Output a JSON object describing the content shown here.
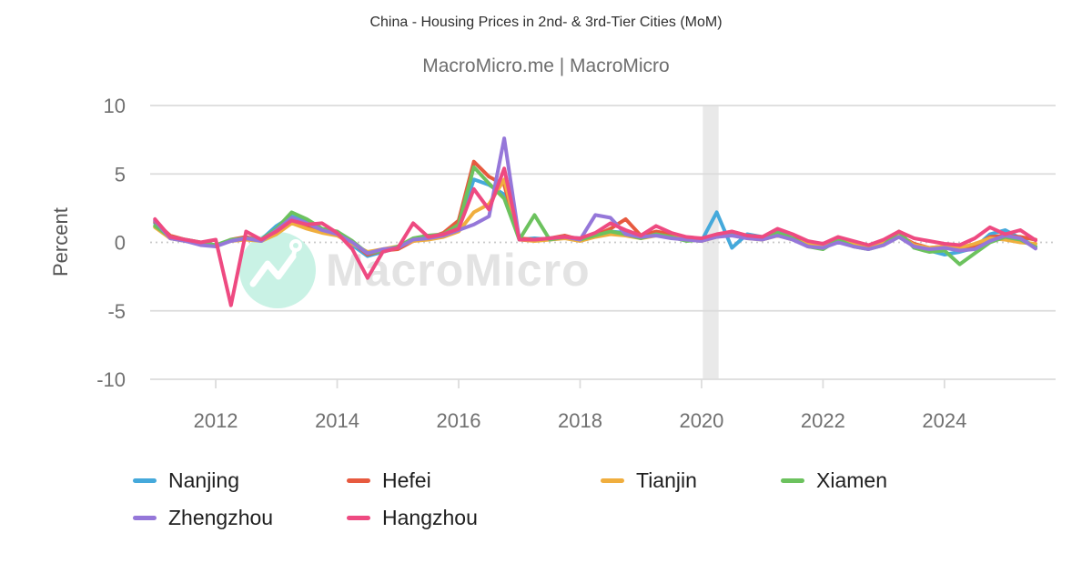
{
  "header": {
    "title": "China - Housing Prices in 2nd- & 3rd-Tier Cities (MoM)",
    "subtitle": "MacroMicro.me | MacroMicro"
  },
  "watermark": {
    "brand": "MacroMicro",
    "logo": "mountain-peaks-with-flag-icon",
    "circle_color": "#C9F2E5",
    "text_color": "#E3E3E3"
  },
  "y_axis": {
    "label": "Percent",
    "ticks": [
      10,
      5,
      0,
      -5,
      -10
    ]
  },
  "x_axis": {
    "ticks": [
      2012,
      2014,
      2016,
      2018,
      2020,
      2022,
      2024
    ]
  },
  "annotations": {
    "covid_band": {
      "x_start": 2020.02,
      "x_end": 2020.28,
      "color": "#E9E9E9"
    }
  },
  "colors": {
    "background": "#FFFFFF",
    "grid_line": "#DCDCDC",
    "zero_line": "#C9C9C9",
    "title_text": "#2F2F2F",
    "subtitle_text": "#6E6E6E",
    "tick_text": "#707070",
    "axis_title_text": "#555555",
    "legend_text": "#1F1F1F"
  },
  "chart_data": {
    "type": "line",
    "title": "China - Housing Prices in 2nd- & 3rd-Tier Cities (MoM)",
    "xlabel": "",
    "ylabel": "Percent",
    "ylim": [
      -10,
      10
    ],
    "x_range": [
      2010.92,
      2025.83
    ],
    "x_start": 2011.0,
    "x_step": 0.25,
    "grid": true,
    "legend_position": "bottom-left",
    "series": [
      {
        "name": "Nanjing",
        "color": "#45A9DB",
        "values": [
          1.4,
          0.3,
          0.1,
          -0.1,
          -0.2,
          0.1,
          0.3,
          0.2,
          1.2,
          1.9,
          1.5,
          0.9,
          0.6,
          -0.2,
          -1.0,
          -0.7,
          -0.4,
          0.2,
          0.4,
          0.6,
          1.2,
          4.6,
          4.2,
          3.5,
          0.2,
          0.3,
          0.2,
          0.4,
          0.3,
          0.6,
          0.8,
          0.7,
          0.4,
          0.7,
          0.5,
          0.2,
          0.1,
          2.2,
          -0.4,
          0.6,
          0.4,
          0.8,
          0.3,
          -0.2,
          -0.4,
          0.2,
          -0.2,
          -0.4,
          0.0,
          0.7,
          -0.3,
          -0.6,
          -0.9,
          -0.7,
          -0.4,
          0.6,
          0.9,
          0.3,
          -0.3
        ]
      },
      {
        "name": "Hefei",
        "color": "#E75A3F",
        "values": [
          1.5,
          0.5,
          0.2,
          0.0,
          -0.3,
          0.2,
          0.4,
          0.1,
          0.8,
          1.6,
          1.2,
          0.8,
          0.7,
          0.0,
          -0.9,
          -0.6,
          -0.5,
          0.1,
          0.3,
          0.7,
          1.6,
          5.9,
          4.8,
          4.2,
          0.3,
          0.2,
          0.3,
          0.5,
          0.2,
          0.5,
          1.0,
          1.7,
          0.5,
          0.8,
          0.6,
          0.3,
          0.2,
          0.5,
          0.8,
          0.5,
          0.4,
          0.6,
          0.3,
          0.0,
          -0.2,
          0.3,
          0.0,
          -0.3,
          0.1,
          0.5,
          -0.1,
          -0.4,
          -0.3,
          -0.6,
          -0.3,
          0.4,
          0.5,
          0.4,
          0.2
        ]
      },
      {
        "name": "Tianjin",
        "color": "#F0AE3E",
        "values": [
          1.1,
          0.3,
          0.1,
          -0.1,
          -0.2,
          0.1,
          0.2,
          0.1,
          0.6,
          1.4,
          1.0,
          0.7,
          0.5,
          -0.1,
          -0.7,
          -0.5,
          -0.3,
          0.1,
          0.2,
          0.4,
          0.8,
          2.2,
          2.8,
          4.6,
          0.2,
          0.1,
          0.2,
          0.3,
          0.1,
          0.4,
          0.6,
          0.5,
          0.3,
          0.5,
          0.4,
          0.2,
          0.1,
          0.4,
          0.6,
          0.3,
          0.2,
          0.5,
          0.2,
          -0.1,
          -0.3,
          0.2,
          -0.1,
          -0.4,
          0.0,
          0.5,
          -0.2,
          -0.4,
          -0.3,
          -0.4,
          -0.1,
          0.3,
          0.2,
          0.0,
          -0.1
        ]
      },
      {
        "name": "Xiamen",
        "color": "#6CC25E",
        "values": [
          1.2,
          0.4,
          0.2,
          0.0,
          -0.2,
          0.2,
          0.3,
          0.2,
          1.0,
          2.2,
          1.7,
          1.0,
          0.8,
          0.1,
          -0.8,
          -0.6,
          -0.3,
          0.3,
          0.5,
          0.6,
          1.3,
          5.5,
          4.3,
          3.2,
          0.2,
          2.0,
          0.2,
          0.4,
          0.2,
          0.5,
          0.8,
          0.6,
          0.3,
          0.6,
          0.4,
          0.1,
          0.2,
          0.5,
          0.7,
          0.4,
          0.3,
          0.7,
          0.3,
          -0.3,
          -0.5,
          0.2,
          -0.3,
          -0.5,
          -0.2,
          0.8,
          -0.4,
          -0.7,
          -0.6,
          -1.6,
          -0.8,
          0.0,
          0.4,
          0.2,
          -0.35
        ]
      },
      {
        "name": "Zhengzhou",
        "color": "#9577D9",
        "values": [
          1.6,
          0.3,
          0.1,
          -0.2,
          -0.3,
          0.1,
          0.3,
          0.1,
          0.9,
          1.8,
          1.4,
          0.9,
          0.6,
          0.0,
          -0.8,
          -0.5,
          -0.4,
          0.2,
          0.3,
          0.5,
          0.9,
          1.3,
          1.9,
          7.6,
          0.2,
          0.2,
          0.3,
          0.4,
          0.2,
          2.0,
          1.8,
          0.6,
          0.4,
          0.5,
          0.3,
          0.2,
          0.1,
          0.4,
          0.5,
          0.3,
          0.2,
          0.5,
          0.2,
          -0.3,
          -0.4,
          0.0,
          -0.3,
          -0.5,
          -0.2,
          0.4,
          -0.3,
          -0.5,
          -0.4,
          -0.6,
          -0.5,
          0.1,
          0.5,
          0.3,
          -0.45
        ]
      },
      {
        "name": "Hangzhou",
        "color": "#EE4A81",
        "values": [
          1.7,
          0.4,
          0.2,
          0.0,
          0.2,
          -4.6,
          0.8,
          0.2,
          0.8,
          1.6,
          1.3,
          1.4,
          0.7,
          -0.5,
          -2.6,
          -0.7,
          -0.4,
          1.4,
          0.4,
          0.6,
          1.0,
          3.9,
          2.4,
          5.4,
          0.2,
          0.2,
          0.3,
          0.4,
          0.3,
          0.7,
          1.4,
          0.9,
          0.5,
          1.2,
          0.7,
          0.4,
          0.3,
          0.6,
          0.8,
          0.5,
          0.4,
          1.0,
          0.6,
          0.1,
          -0.1,
          0.4,
          0.1,
          -0.2,
          0.2,
          0.8,
          0.3,
          0.1,
          -0.1,
          -0.2,
          0.3,
          1.1,
          0.6,
          0.9,
          0.15
        ]
      }
    ]
  }
}
